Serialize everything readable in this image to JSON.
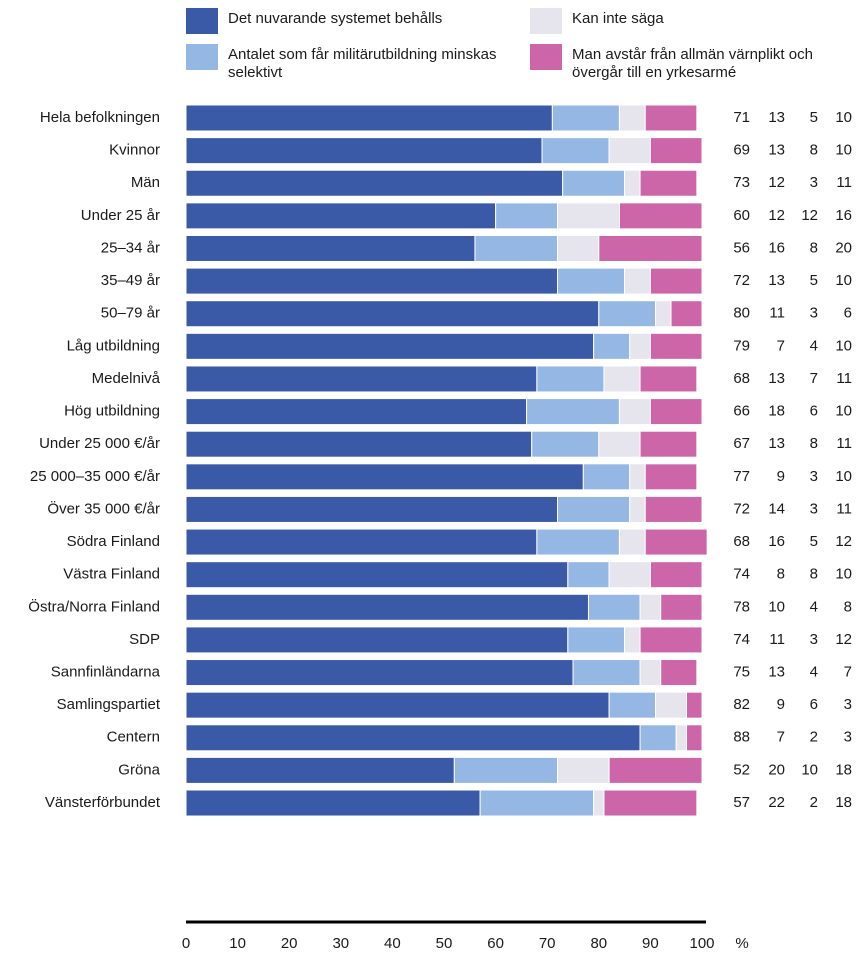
{
  "chart_data": {
    "type": "stacked_bar_horizontal",
    "categories": [
      "Hela befolkningen",
      "Kvinnor",
      "Män",
      "Under 25 år",
      "25–34 år",
      "35–49 år",
      "50–79 år",
      "Låg utbildning",
      "Medelnivå",
      "Hög utbildning",
      "Under 25 000 €/år",
      "25 000–35 000 €/år",
      "Över 35 000 €/år",
      "Södra Finland",
      "Västra Finland",
      "Östra/Norra Finland",
      "SDP",
      "Sannfinländarna",
      "Samlingspartiet",
      "Centern",
      "Gröna",
      "Vänsterförbundet"
    ],
    "series": [
      {
        "name": "Det nuvarande systemet behålls",
        "color": "#3a5aa8",
        "values": [
          71,
          69,
          73,
          60,
          56,
          72,
          80,
          79,
          68,
          66,
          67,
          77,
          72,
          68,
          74,
          78,
          74,
          75,
          82,
          88,
          52,
          57
        ]
      },
      {
        "name": "Antalet som får militärutbildning minskas selektivt",
        "color": "#94b8e3",
        "values": [
          13,
          13,
          12,
          12,
          16,
          13,
          11,
          7,
          13,
          18,
          13,
          9,
          14,
          16,
          8,
          10,
          11,
          13,
          9,
          7,
          20,
          22
        ]
      },
      {
        "name": "Kan inte säga",
        "color": "#e6e4ec",
        "values": [
          5,
          8,
          3,
          12,
          8,
          5,
          3,
          4,
          7,
          6,
          8,
          3,
          3,
          5,
          8,
          4,
          3,
          4,
          6,
          2,
          10,
          2
        ]
      },
      {
        "name": "Man avstår från allmän värnplikt och övergår till en yrkesarmé",
        "color": "#cc66a8",
        "values": [
          10,
          10,
          11,
          16,
          20,
          10,
          6,
          10,
          11,
          10,
          11,
          10,
          11,
          12,
          10,
          8,
          12,
          7,
          3,
          3,
          18,
          18
        ]
      }
    ],
    "xlim": [
      0,
      100
    ],
    "xticks": [
      0,
      10,
      20,
      30,
      40,
      50,
      60,
      70,
      80,
      90,
      100
    ],
    "xlabel": "%"
  }
}
